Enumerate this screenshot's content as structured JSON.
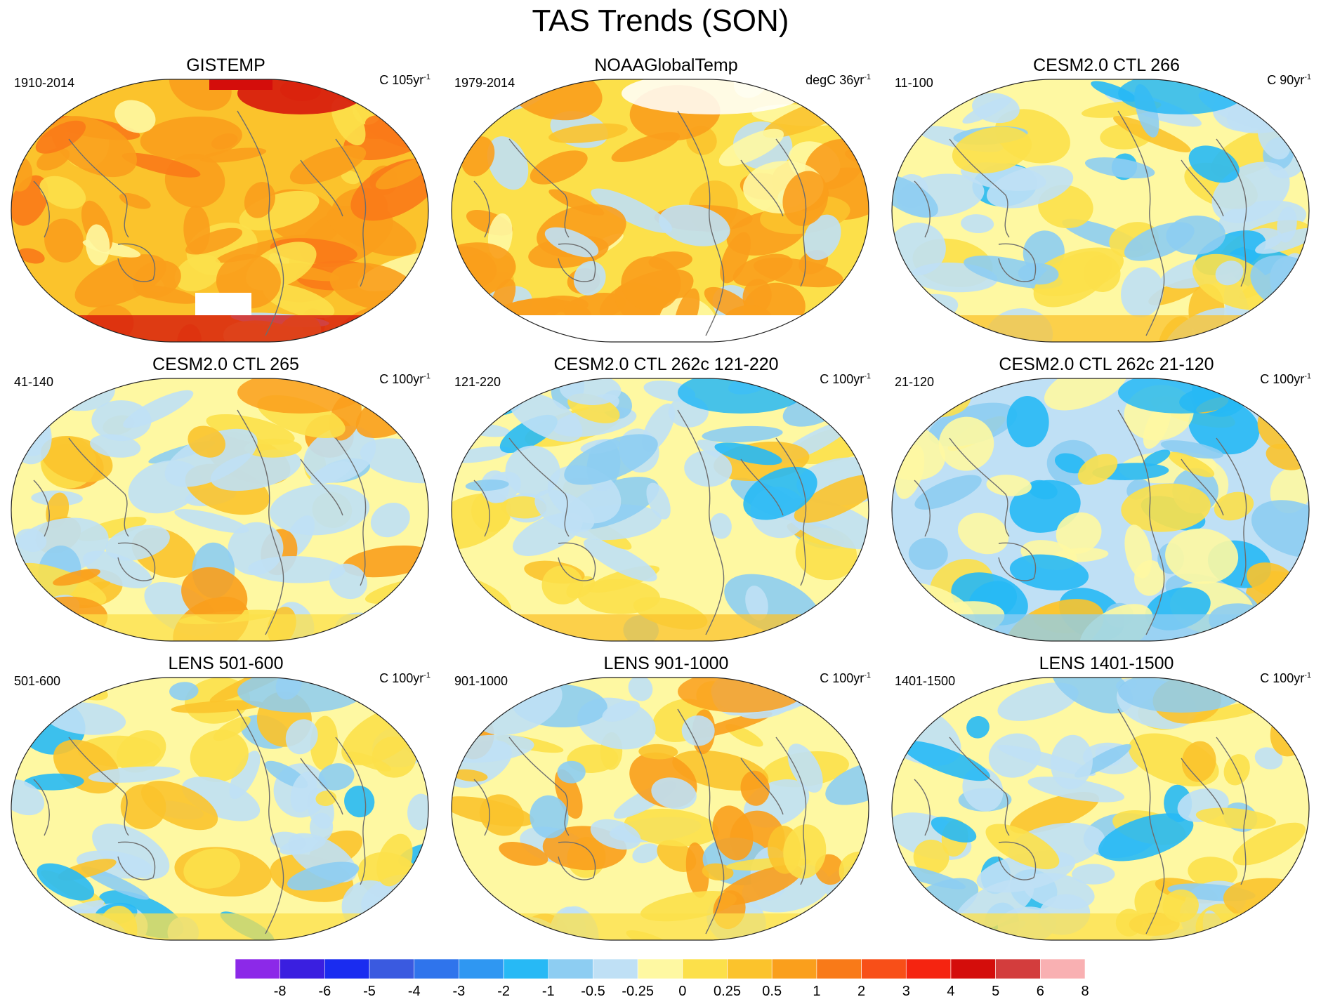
{
  "title": "TAS Trends (SON)",
  "panels": [
    {
      "title": "GISTEMP",
      "left": "1910-2014",
      "unit_prefix": "C 105yr",
      "unit_exp": "-1",
      "pattern": "gistemp"
    },
    {
      "title": "NOAAGlobalTemp",
      "left": "1979-2014",
      "unit_prefix": "degC 36yr",
      "unit_exp": "-1",
      "pattern": "noaa"
    },
    {
      "title": "CESM2.0 CTL 266",
      "left": "11-100",
      "unit_prefix": "C 90yr",
      "unit_exp": "-1",
      "pattern": "mixed-cool"
    },
    {
      "title": "CESM2.0 CTL 265",
      "left": "41-140",
      "unit_prefix": "C 100yr",
      "unit_exp": "-1",
      "pattern": "warm-north"
    },
    {
      "title": "CESM2.0 CTL 262c 121-220",
      "left": "121-220",
      "unit_prefix": "C 100yr",
      "unit_exp": "-1",
      "pattern": "mixed-cool"
    },
    {
      "title": "CESM2.0 CTL 262c 21-120",
      "left": "21-120",
      "unit_prefix": "C 100yr",
      "unit_exp": "-1",
      "pattern": "cool"
    },
    {
      "title": "LENS 501-600",
      "left": "501-600",
      "unit_prefix": "C 100yr",
      "unit_exp": "-1",
      "pattern": "mixed"
    },
    {
      "title": "LENS 901-1000",
      "left": "901-1000",
      "unit_prefix": "C 100yr",
      "unit_exp": "-1",
      "pattern": "warm-north"
    },
    {
      "title": "LENS 1401-1500",
      "left": "1401-1500",
      "unit_prefix": "C 100yr",
      "unit_exp": "-1",
      "pattern": "mixed"
    }
  ],
  "colorbar": {
    "colors": [
      "#8c29e8",
      "#3a1fe0",
      "#1a2cf0",
      "#3a5ae0",
      "#2f74ec",
      "#2f97f2",
      "#27b9f5",
      "#8dcdf2",
      "#bfe0f5",
      "#fef8a2",
      "#fce04a",
      "#fbc32c",
      "#fa9f1c",
      "#f97a18",
      "#f84f18",
      "#f52410",
      "#d40d0b",
      "#d33d3d",
      "#f9b0b2"
    ],
    "labels": [
      "-8",
      "-6",
      "-5",
      "-4",
      "-3",
      "-2",
      "-1",
      "-0.5",
      "-0.25",
      "0",
      "0.25",
      "0.5",
      "1",
      "2",
      "3",
      "4",
      "5",
      "6",
      "8"
    ]
  }
}
